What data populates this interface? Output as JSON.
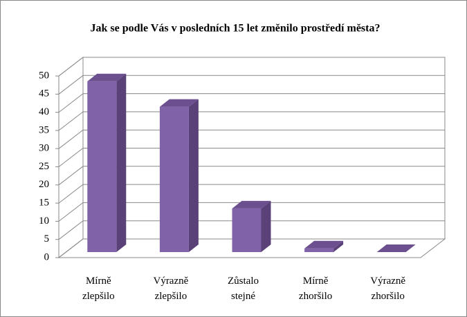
{
  "chart_data": {
    "type": "bar3d",
    "title": "Jak se podle Vás v posledních 15 let změnilo prostředí města?",
    "categories": [
      "Mírně zlepšilo",
      "Výrazně zlepšilo",
      "Zůstalo stejné",
      "Mírně zhoršilo",
      "Výrazně zhoršilo"
    ],
    "values": [
      47,
      40,
      12,
      1,
      0
    ],
    "color": "#7f62a8",
    "ylim": [
      0,
      50
    ],
    "yticks": [
      0,
      5,
      10,
      15,
      20,
      25,
      30,
      35,
      40,
      45,
      50
    ],
    "grid": true
  }
}
